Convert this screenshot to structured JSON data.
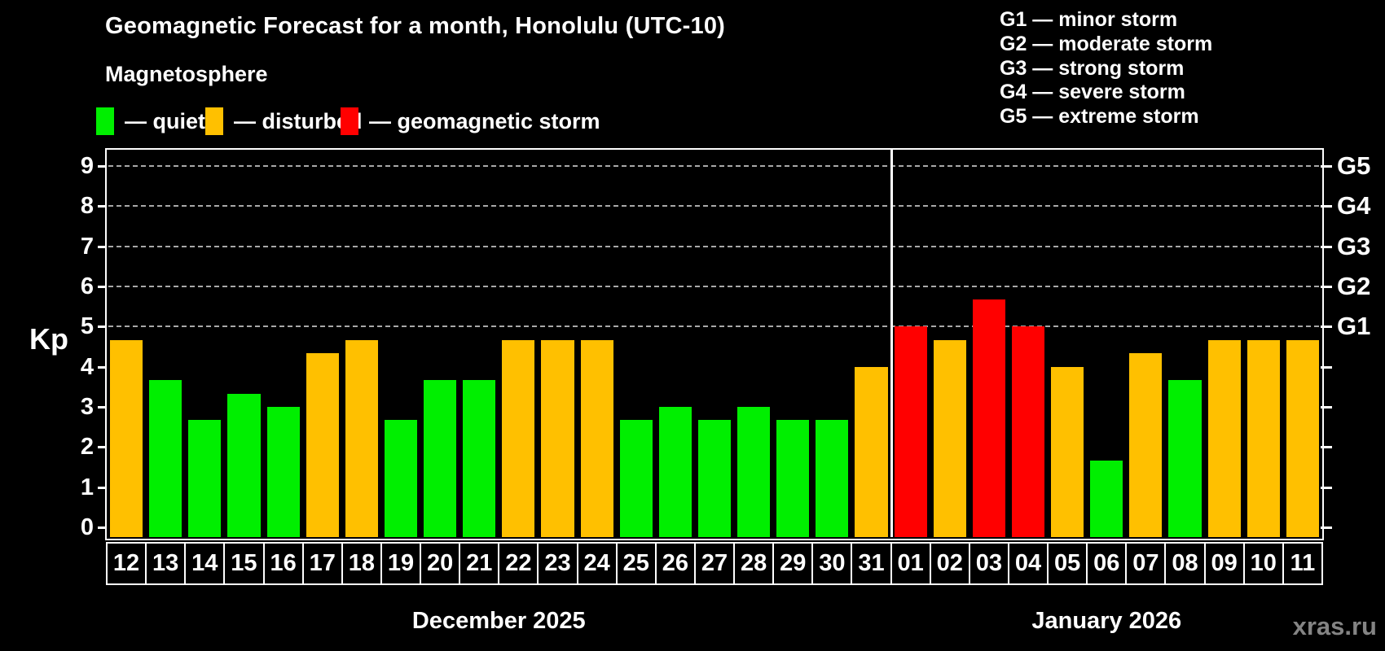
{
  "title": "Geomagnetic Forecast for a month, Honolulu (UTC-10)",
  "subtitle": "Magnetosphere",
  "status_legend": [
    {
      "key": "quiet",
      "label": "— quiet",
      "color": "#00ef00"
    },
    {
      "key": "disturbed",
      "label": "— disturbed",
      "color": "#ffc000"
    },
    {
      "key": "storm",
      "label": "— geomagnetic storm",
      "color": "#ff0000"
    }
  ],
  "g_scale_legend": [
    "G1 — minor storm",
    "G2 — moderate storm",
    "G3 — strong storm",
    "G4 — severe storm",
    "G5 — extreme storm"
  ],
  "watermark": "xras.ru",
  "chart_data": {
    "type": "bar",
    "ylabel": "Kp",
    "ylim": [
      0,
      9
    ],
    "yticks": [
      0,
      1,
      2,
      3,
      4,
      5,
      6,
      7,
      8,
      9
    ],
    "gridlines_at": [
      5,
      6,
      7,
      8,
      9
    ],
    "grid": "dashed horizontal lines at storm levels only",
    "legend_position": "top-left and top-right",
    "right_axis": [
      {
        "kp": 5,
        "label": "G1"
      },
      {
        "kp": 6,
        "label": "G2"
      },
      {
        "kp": 7,
        "label": "G3"
      },
      {
        "kp": 8,
        "label": "G4"
      },
      {
        "kp": 9,
        "label": "G5"
      }
    ],
    "groups": [
      {
        "label": "December 2025",
        "days": [
          "12",
          "13",
          "14",
          "15",
          "16",
          "17",
          "18",
          "19",
          "20",
          "21",
          "22",
          "23",
          "24",
          "25",
          "26",
          "27",
          "28",
          "29",
          "30",
          "31"
        ],
        "values": [
          4.67,
          3.67,
          2.67,
          3.33,
          3.0,
          4.33,
          4.67,
          2.67,
          3.67,
          3.67,
          4.67,
          4.67,
          4.67,
          2.67,
          3.0,
          2.67,
          3.0,
          2.67,
          2.67,
          4.0
        ],
        "status": [
          "disturbed",
          "quiet",
          "quiet",
          "quiet",
          "quiet",
          "disturbed",
          "disturbed",
          "quiet",
          "quiet",
          "quiet",
          "disturbed",
          "disturbed",
          "disturbed",
          "quiet",
          "quiet",
          "quiet",
          "quiet",
          "quiet",
          "quiet",
          "disturbed"
        ]
      },
      {
        "label": "January 2026",
        "days": [
          "01",
          "02",
          "03",
          "04",
          "05",
          "06",
          "07",
          "08",
          "09",
          "10",
          "11"
        ],
        "values": [
          5.0,
          4.67,
          5.67,
          5.0,
          4.0,
          1.67,
          4.33,
          3.67,
          4.67,
          4.67,
          4.67
        ],
        "status": [
          "storm",
          "disturbed",
          "storm",
          "storm",
          "disturbed",
          "quiet",
          "disturbed",
          "quiet",
          "disturbed",
          "disturbed",
          "disturbed"
        ]
      }
    ]
  }
}
